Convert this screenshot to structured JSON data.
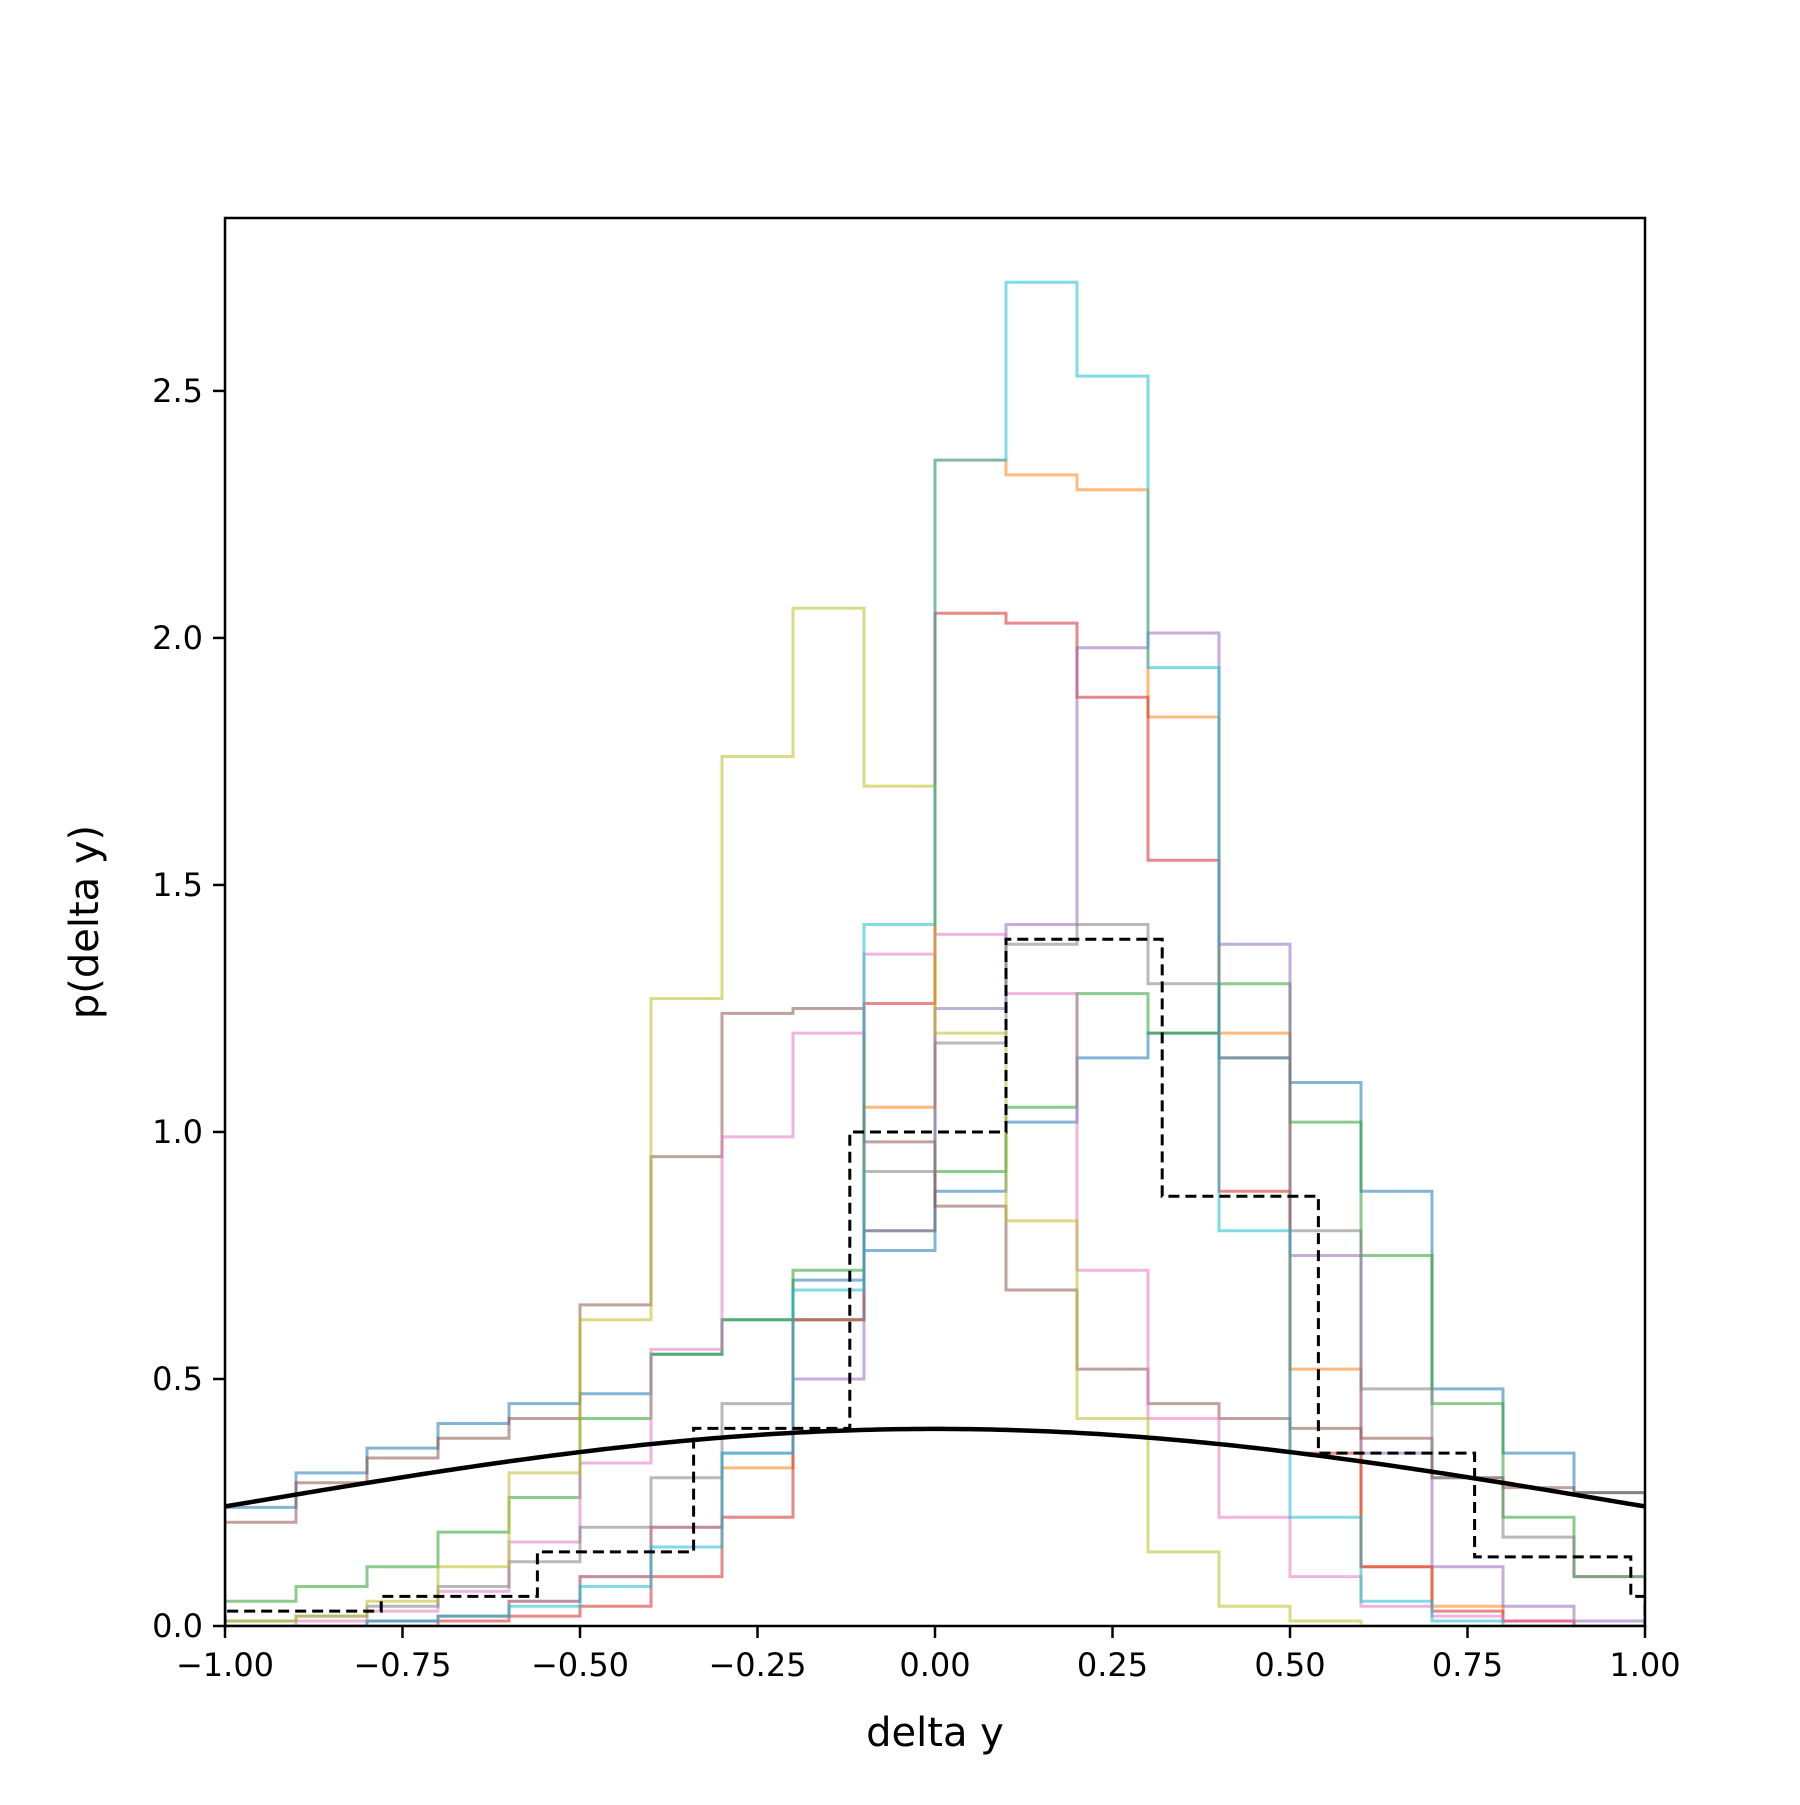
{
  "chart_data": {
    "type": "line",
    "xlabel": "delta y",
    "ylabel": "p(delta y)",
    "xlim": [
      -1.0,
      1.0
    ],
    "ylim": [
      0.0,
      2.85
    ],
    "xticks": [
      "−1.00",
      "−0.75",
      "−0.50",
      "−0.25",
      "0.00",
      "0.25",
      "0.50",
      "0.75",
      "1.00"
    ],
    "xtick_values": [
      -1.0,
      -0.75,
      -0.5,
      -0.25,
      0.0,
      0.25,
      0.5,
      0.75,
      1.0
    ],
    "yticks": [
      "0.0",
      "0.5",
      "1.0",
      "1.5",
      "2.0",
      "2.5"
    ],
    "ytick_values": [
      0.0,
      0.5,
      1.0,
      1.5,
      2.0,
      2.5
    ],
    "grid": false,
    "legend": false,
    "histograms": [
      {
        "color": "#1f77b4",
        "edges": [
          -1.0,
          -0.9,
          -0.8,
          -0.7,
          -0.6,
          -0.5,
          -0.4,
          -0.3,
          -0.2,
          -0.1,
          0.0,
          0.1,
          0.2,
          0.3,
          0.4,
          0.5,
          0.6,
          0.7,
          0.8,
          0.9,
          1.0
        ],
        "values": [
          0.24,
          0.31,
          0.36,
          0.41,
          0.45,
          0.47,
          0.55,
          0.62,
          0.7,
          0.76,
          0.88,
          1.02,
          1.15,
          1.2,
          1.15,
          1.1,
          0.88,
          0.48,
          0.35,
          0.27
        ]
      },
      {
        "color": "#ff7f0e",
        "edges": [
          -1.0,
          -0.9,
          -0.8,
          -0.7,
          -0.6,
          -0.5,
          -0.4,
          -0.3,
          -0.2,
          -0.1,
          0.0,
          0.1,
          0.2,
          0.3,
          0.4,
          0.5,
          0.6,
          0.7,
          0.8,
          0.9,
          1.0
        ],
        "values": [
          0.0,
          0.0,
          0.01,
          0.02,
          0.05,
          0.1,
          0.2,
          0.32,
          0.62,
          1.05,
          2.36,
          2.33,
          2.3,
          1.84,
          1.2,
          0.52,
          0.12,
          0.04,
          0.01,
          0.0
        ]
      },
      {
        "color": "#2ca02c",
        "edges": [
          -1.0,
          -0.9,
          -0.8,
          -0.7,
          -0.6,
          -0.5,
          -0.4,
          -0.3,
          -0.2,
          -0.1,
          0.0,
          0.1,
          0.2,
          0.3,
          0.4,
          0.5,
          0.6,
          0.7,
          0.8,
          0.9,
          1.0
        ],
        "values": [
          0.05,
          0.08,
          0.12,
          0.19,
          0.26,
          0.42,
          0.55,
          0.62,
          0.72,
          0.8,
          0.92,
          1.05,
          1.28,
          1.2,
          1.3,
          1.02,
          0.75,
          0.45,
          0.22,
          0.1
        ]
      },
      {
        "color": "#d62728",
        "edges": [
          -1.0,
          -0.9,
          -0.8,
          -0.7,
          -0.6,
          -0.5,
          -0.4,
          -0.3,
          -0.2,
          -0.1,
          0.0,
          0.1,
          0.2,
          0.3,
          0.4,
          0.5,
          0.6,
          0.7,
          0.8,
          0.9,
          1.0
        ],
        "values": [
          0.0,
          0.0,
          0.0,
          0.01,
          0.02,
          0.04,
          0.1,
          0.22,
          0.62,
          1.26,
          2.05,
          2.03,
          1.88,
          1.55,
          0.88,
          0.35,
          0.12,
          0.03,
          0.01,
          0.0
        ]
      },
      {
        "color": "#9467bd",
        "edges": [
          -1.0,
          -0.9,
          -0.8,
          -0.7,
          -0.6,
          -0.5,
          -0.4,
          -0.3,
          -0.2,
          -0.1,
          0.0,
          0.1,
          0.2,
          0.3,
          0.4,
          0.5,
          0.6,
          0.7,
          0.8,
          0.9,
          1.0
        ],
        "values": [
          0.0,
          0.0,
          0.01,
          0.02,
          0.05,
          0.1,
          0.2,
          0.35,
          0.5,
          0.8,
          1.25,
          1.42,
          1.98,
          2.01,
          1.38,
          0.75,
          0.35,
          0.12,
          0.04,
          0.01
        ]
      },
      {
        "color": "#8c564b",
        "edges": [
          -1.0,
          -0.9,
          -0.8,
          -0.7,
          -0.6,
          -0.5,
          -0.4,
          -0.3,
          -0.2,
          -0.1,
          0.0,
          0.1,
          0.2,
          0.3,
          0.4,
          0.5,
          0.6,
          0.7,
          0.8,
          0.9,
          1.0
        ],
        "values": [
          0.21,
          0.29,
          0.34,
          0.38,
          0.42,
          0.65,
          0.95,
          1.24,
          1.25,
          0.98,
          0.85,
          0.68,
          0.52,
          0.45,
          0.42,
          0.4,
          0.38,
          0.3,
          0.28,
          0.27
        ]
      },
      {
        "color": "#e377c2",
        "edges": [
          -1.0,
          -0.9,
          -0.8,
          -0.7,
          -0.6,
          -0.5,
          -0.4,
          -0.3,
          -0.2,
          -0.1,
          0.0,
          0.1,
          0.2,
          0.3,
          0.4,
          0.5,
          0.6,
          0.7,
          0.8,
          0.9,
          1.0
        ],
        "values": [
          0.0,
          0.01,
          0.03,
          0.07,
          0.17,
          0.33,
          0.56,
          0.99,
          1.2,
          1.36,
          1.4,
          1.28,
          0.72,
          0.42,
          0.22,
          0.1,
          0.04,
          0.02,
          0.01,
          0.0
        ]
      },
      {
        "color": "#7f7f7f",
        "edges": [
          -1.0,
          -0.9,
          -0.8,
          -0.7,
          -0.6,
          -0.5,
          -0.4,
          -0.3,
          -0.2,
          -0.1,
          0.0,
          0.1,
          0.2,
          0.3,
          0.4,
          0.5,
          0.6,
          0.7,
          0.8,
          0.9,
          1.0
        ],
        "values": [
          0.01,
          0.02,
          0.04,
          0.08,
          0.13,
          0.2,
          0.3,
          0.45,
          0.62,
          0.92,
          1.18,
          1.38,
          1.42,
          1.3,
          1.15,
          0.8,
          0.48,
          0.3,
          0.18,
          0.1
        ]
      },
      {
        "color": "#bcbd22",
        "edges": [
          -1.0,
          -0.9,
          -0.8,
          -0.7,
          -0.6,
          -0.5,
          -0.4,
          -0.3,
          -0.2,
          -0.1,
          0.0,
          0.1,
          0.2,
          0.3,
          0.4,
          0.5,
          0.6,
          0.7,
          0.8,
          0.9,
          1.0
        ],
        "values": [
          0.01,
          0.02,
          0.05,
          0.12,
          0.31,
          0.62,
          1.27,
          1.76,
          2.06,
          1.7,
          1.2,
          0.82,
          0.42,
          0.15,
          0.04,
          0.01,
          0.0,
          0.0,
          0.0,
          0.0
        ]
      },
      {
        "color": "#17becf",
        "edges": [
          -1.0,
          -0.9,
          -0.8,
          -0.7,
          -0.6,
          -0.5,
          -0.4,
          -0.3,
          -0.2,
          -0.1,
          0.0,
          0.1,
          0.2,
          0.3,
          0.4,
          0.5,
          0.6,
          0.7,
          0.8,
          0.9,
          1.0
        ],
        "values": [
          0.0,
          0.0,
          0.01,
          0.02,
          0.04,
          0.08,
          0.16,
          0.35,
          0.68,
          1.42,
          2.36,
          2.72,
          2.53,
          1.94,
          0.8,
          0.22,
          0.05,
          0.01,
          0.0,
          0.0
        ]
      }
    ],
    "aggregate_histogram": {
      "color": "#000000",
      "style": "dashed",
      "edges": [
        -1.0,
        -0.78,
        -0.56,
        -0.34,
        -0.12,
        0.1,
        0.32,
        0.54,
        0.76,
        0.98,
        1.0
      ],
      "values": [
        0.03,
        0.06,
        0.15,
        0.4,
        1.0,
        1.39,
        0.87,
        0.35,
        0.14,
        0.06
      ]
    },
    "curve": {
      "color": "#000000",
      "type": "gaussian",
      "mean": 0.0,
      "std": 1.0
    }
  }
}
